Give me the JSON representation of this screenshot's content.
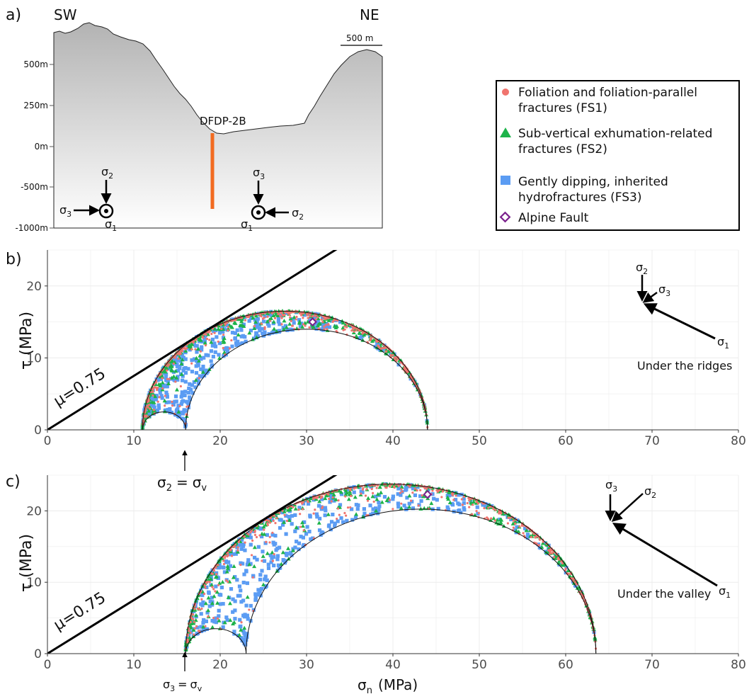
{
  "panel_labels": {
    "a": "a)",
    "b": "b)",
    "c": "c)"
  },
  "cross_section": {
    "sw": "SW",
    "ne": "NE",
    "scale_bar": "500 m",
    "well": "DFDP-2B",
    "depth_labels": [
      "500m",
      "250m",
      "0m",
      "-500m",
      "-1000m"
    ],
    "ground_color": "#c8c8c8",
    "well_color": "#f26b21"
  },
  "legend": {
    "items": [
      {
        "line1": "Foliation and foliation-parallel",
        "line2": "fractures (FS1)",
        "symbol": "circle",
        "color": "#f0746e"
      },
      {
        "line1": "Sub-vertical exhumation-related",
        "line2": "fractures (FS2)",
        "symbol": "triangle",
        "color": "#1db34a"
      },
      {
        "line1": "Gently dipping, inherited",
        "line2": "hydrofractures (FS3)",
        "symbol": "square",
        "color": "#5b9cf3"
      },
      {
        "line1": "Alpine Fault",
        "line2": "",
        "symbol": "diamond",
        "color": "#7a1f8c"
      }
    ]
  },
  "stress_symbols": {
    "sigma": "σ",
    "sub1": "1",
    "sub2": "2",
    "sub3": "3",
    "subv": "v",
    "sub_n": "n",
    "eq": "="
  },
  "chart_data": [
    {
      "type": "scatter",
      "panel": "b",
      "xlim": [
        0,
        80
      ],
      "ylim": [
        0,
        25
      ],
      "xticks": [
        0,
        10,
        20,
        30,
        40,
        50,
        60,
        70,
        80
      ],
      "yticks": [
        0,
        10,
        20
      ],
      "ylabel": "τ (MPa)",
      "xlabel": "",
      "stresses": {
        "sigma3": 11.0,
        "sigma2": 16.0,
        "sigma1": 44.0
      },
      "friction_line": {
        "mu": 0.75,
        "label": "μ=0.75"
      },
      "alpine_fault": [
        30.7,
        15.0
      ],
      "orientation_label": "Under the ridges",
      "vertical_stress_note": {
        "x": 16.0
      }
    },
    {
      "type": "scatter",
      "panel": "c",
      "xlim": [
        0,
        80
      ],
      "ylim": [
        0,
        25
      ],
      "xticks": [
        0,
        10,
        20,
        30,
        40,
        50,
        60,
        70,
        80
      ],
      "yticks": [
        0,
        10,
        20
      ],
      "ylabel": "τ (MPa)",
      "xlabel": "σn (MPa)",
      "stresses": {
        "sigma3": 16.0,
        "sigma2": 23.0,
        "sigma1": 63.5
      },
      "friction_line": {
        "mu": 0.75,
        "label": "μ=0.75"
      },
      "alpine_fault": [
        44.0,
        22.3
      ],
      "orientation_label": "Under the valley",
      "vertical_stress_note": {
        "x": 16.0
      }
    }
  ]
}
